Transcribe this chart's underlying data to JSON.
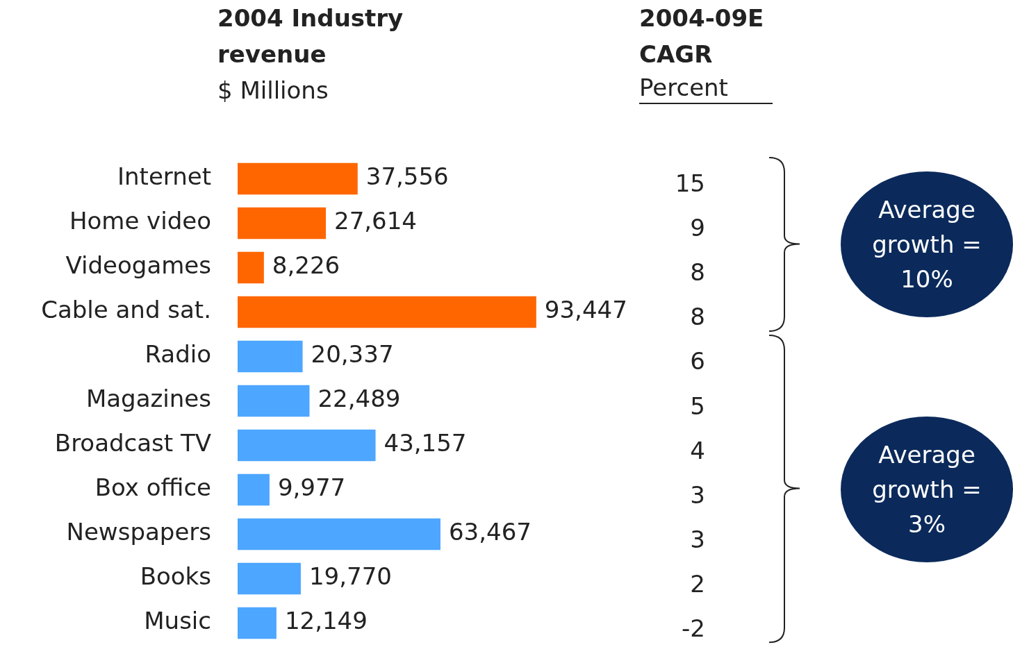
{
  "chart_data": [
    {
      "type": "bar",
      "orientation": "horizontal",
      "title": "2004 Industry revenue",
      "subtitle": "$ Millions",
      "categories": [
        "Internet",
        "Home video",
        "Videogames",
        "Cable and sat.",
        "Radio",
        "Magazines",
        "Broadcast TV",
        "Box office",
        "Newspapers",
        "Books",
        "Music"
      ],
      "values": [
        37556,
        27614,
        8226,
        93447,
        20337,
        22489,
        43157,
        9977,
        63467,
        19770,
        12149
      ],
      "colors": [
        "#ff6600",
        "#ff6600",
        "#ff6600",
        "#ff6600",
        "#4da6ff",
        "#4da6ff",
        "#4da6ff",
        "#4da6ff",
        "#4da6ff",
        "#4da6ff",
        "#4da6ff"
      ],
      "value_labels": [
        "37,556",
        "27,614",
        "8,226",
        "93,447",
        "20,337",
        "22,489",
        "43,157",
        "9,977",
        "63,467",
        "19,770",
        "12,149"
      ]
    },
    {
      "type": "other",
      "title": "2004-09E CAGR",
      "subtitle": "Percent",
      "values": [
        15,
        9,
        8,
        8,
        6,
        5,
        4,
        3,
        3,
        2,
        -2
      ],
      "data_labels": true,
      "annotations": [
        "Average growth = 10%",
        "Average growth = 3%"
      ]
    }
  ]
}
